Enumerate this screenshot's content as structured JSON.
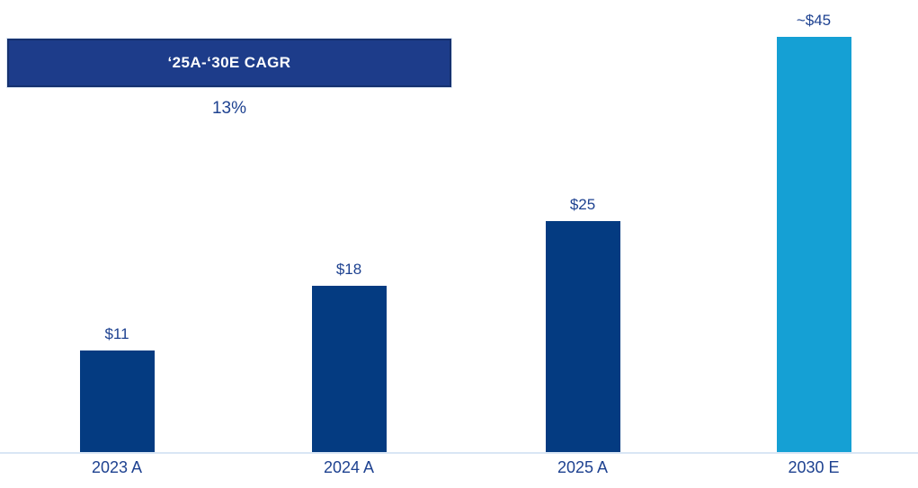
{
  "chart_data": {
    "type": "bar",
    "categories": [
      "2023 A",
      "2024 A",
      "2025 A",
      "2030 E"
    ],
    "values": [
      11,
      18,
      25,
      45
    ],
    "value_labels": [
      "$11",
      "$18",
      "$25",
      "~$45"
    ],
    "series_note": "first three bars are actuals, last bar is an estimate",
    "title": "",
    "xlabel": "",
    "ylabel": "",
    "ylim": [
      0,
      45
    ],
    "grid": false,
    "legend": false,
    "bar_colors": [
      "#043b81",
      "#043b81",
      "#043b81",
      "#15a0d4"
    ]
  },
  "annotation": {
    "cagr_banner_label": "‘25A-‘30E CAGR",
    "cagr_value": "13%"
  },
  "colors": {
    "bar_actual": "#043b81",
    "bar_estimate": "#15a0d4",
    "banner_fill": "#1d3c8a",
    "banner_border": "#16316f",
    "banner_text": "#ffffff",
    "label_text": "#1d4190",
    "axis_line": "#d9e6f5"
  }
}
